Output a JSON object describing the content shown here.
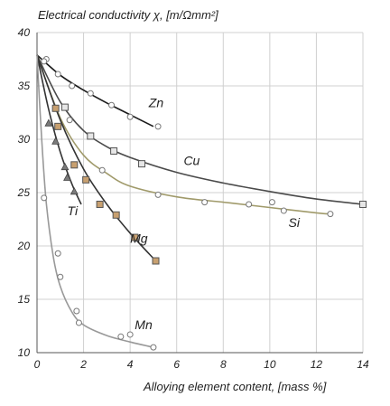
{
  "chart_data": {
    "type": "line",
    "title": "",
    "ylabel": "Electrical conductivity χ, [m/Ωmm²]",
    "xlabel": "Alloying element content, [mass %]",
    "xlim": [
      0,
      14
    ],
    "ylim": [
      10,
      40
    ],
    "xticks": [
      "0",
      "2",
      "4",
      "6",
      "8",
      "10",
      "12",
      "14"
    ],
    "yticks": [
      "10",
      "15",
      "20",
      "25",
      "30",
      "35",
      "40"
    ],
    "grid": true,
    "series": [
      {
        "name": "Zn",
        "color": "#1a1a1a",
        "marker": "circle",
        "marker_fill": "#ffffff",
        "points": [
          [
            0.4,
            37.5
          ],
          [
            0.9,
            36.1
          ],
          [
            1.5,
            35.0
          ],
          [
            2.3,
            34.3
          ],
          [
            3.2,
            33.2
          ],
          [
            4.0,
            32.1
          ],
          [
            5.2,
            31.2
          ]
        ],
        "curve": [
          [
            0,
            37.9
          ],
          [
            1,
            36.0
          ],
          [
            2,
            34.6
          ],
          [
            3,
            33.4
          ],
          [
            4,
            32.3
          ],
          [
            5,
            31.2
          ]
        ]
      },
      {
        "name": "Cu",
        "color": "#4a4a4a",
        "marker": "square",
        "marker_fill": "#e6e6e6",
        "points": [
          [
            1.2,
            33.0
          ],
          [
            2.3,
            30.3
          ],
          [
            3.3,
            28.9
          ],
          [
            4.5,
            27.7
          ],
          [
            14.0,
            23.9
          ]
        ],
        "curve": [
          [
            0,
            37.9
          ],
          [
            1,
            33.5
          ],
          [
            2,
            30.8
          ],
          [
            3,
            29.3
          ],
          [
            4,
            28.3
          ],
          [
            6,
            26.9
          ],
          [
            8,
            25.9
          ],
          [
            10,
            25.1
          ],
          [
            12,
            24.4
          ],
          [
            14,
            23.9
          ]
        ]
      },
      {
        "name": "Si",
        "color": "#a09a6a",
        "marker": "circle",
        "marker_fill": "#ffffff",
        "points": [
          [
            1.4,
            31.8
          ],
          [
            2.8,
            27.1
          ],
          [
            5.2,
            24.8
          ],
          [
            7.2,
            24.1
          ],
          [
            9.1,
            23.9
          ],
          [
            10.1,
            24.1
          ],
          [
            10.6,
            23.3
          ],
          [
            12.6,
            23.0
          ]
        ],
        "curve": [
          [
            0,
            37.9
          ],
          [
            1,
            32.0
          ],
          [
            2,
            28.5
          ],
          [
            3,
            26.8
          ],
          [
            4,
            25.6
          ],
          [
            6,
            24.6
          ],
          [
            8,
            24.1
          ],
          [
            10,
            23.6
          ],
          [
            12,
            23.1
          ],
          [
            12.6,
            23.0
          ]
        ]
      },
      {
        "name": "Mg",
        "color": "#333333",
        "marker": "square",
        "marker_fill": "#c8a070",
        "points": [
          [
            0.8,
            32.9
          ],
          [
            0.9,
            31.2
          ],
          [
            1.6,
            27.6
          ],
          [
            2.1,
            26.2
          ],
          [
            2.7,
            23.9
          ],
          [
            3.4,
            22.9
          ],
          [
            4.2,
            20.8
          ],
          [
            5.1,
            18.6
          ]
        ],
        "curve": [
          [
            0,
            37.9
          ],
          [
            1,
            31.8
          ],
          [
            2,
            27.2
          ],
          [
            3,
            23.9
          ],
          [
            4,
            21.2
          ],
          [
            5.1,
            18.6
          ]
        ]
      },
      {
        "name": "Ti",
        "color": "#333333",
        "marker": "triangle",
        "marker_fill": "#7a7a7a",
        "points": [
          [
            0.5,
            31.5
          ],
          [
            0.8,
            29.8
          ],
          [
            1.2,
            27.4
          ],
          [
            1.3,
            26.4
          ],
          [
            1.6,
            25.1
          ]
        ],
        "curve": [
          [
            0,
            37.9
          ],
          [
            0.5,
            32.8
          ],
          [
            1.0,
            28.8
          ],
          [
            1.5,
            25.8
          ],
          [
            1.9,
            23.9
          ]
        ]
      },
      {
        "name": "Mn",
        "color": "#999999",
        "marker": "circle",
        "marker_fill": "#ffffff",
        "points": [
          [
            0.3,
            24.5
          ],
          [
            0.3,
            37.3
          ],
          [
            0.9,
            19.3
          ],
          [
            1.0,
            17.1
          ],
          [
            1.7,
            13.9
          ],
          [
            1.8,
            12.8
          ],
          [
            3.6,
            11.5
          ],
          [
            4.0,
            11.7
          ],
          [
            5.0,
            10.5
          ]
        ],
        "curve": [
          [
            0,
            37.9
          ],
          [
            0.2,
            30.0
          ],
          [
            0.4,
            24.0
          ],
          [
            0.7,
            19.0
          ],
          [
            1.0,
            16.2
          ],
          [
            1.5,
            13.8
          ],
          [
            2.0,
            12.6
          ],
          [
            3.0,
            11.6
          ],
          [
            4.0,
            11.0
          ],
          [
            5.0,
            10.5
          ]
        ]
      }
    ],
    "annotations": [
      {
        "text": "Zn",
        "at": [
          4.8,
          33.0
        ]
      },
      {
        "text": "Cu",
        "at": [
          6.3,
          27.6
        ]
      },
      {
        "text": "Si",
        "at": [
          10.8,
          21.8
        ]
      },
      {
        "text": "Mg",
        "at": [
          4.0,
          20.3
        ]
      },
      {
        "text": "Ti",
        "at": [
          1.3,
          22.9
        ]
      },
      {
        "text": "Mn",
        "at": [
          4.2,
          12.2
        ]
      }
    ]
  }
}
